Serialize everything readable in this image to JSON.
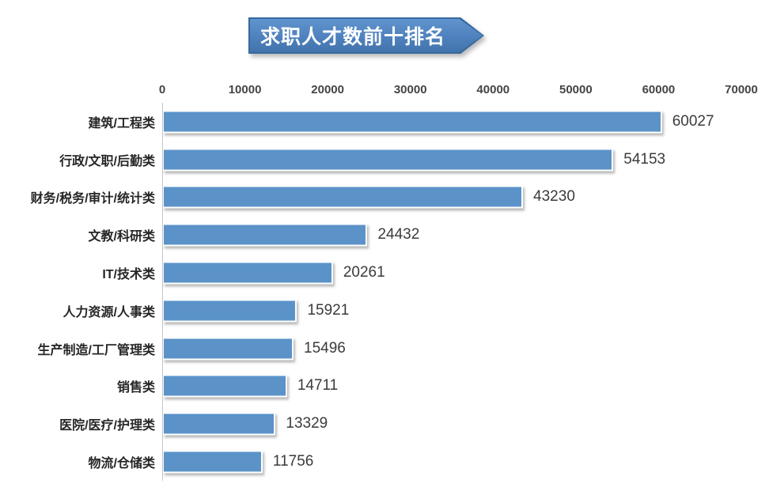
{
  "title": "求职人才数前十排名",
  "chart_data": {
    "type": "bar",
    "orientation": "horizontal",
    "title": "求职人才数前十排名",
    "categories": [
      "建筑/工程类",
      "行政/文职/后勤类",
      "财务/税务/审计/统计类",
      "文教/科研类",
      "IT/技术类",
      "人力资源/人事类",
      "生产制造/工厂管理类",
      "销售类",
      "医院/医疗/护理类",
      "物流/仓储类"
    ],
    "values": [
      60027,
      54153,
      43230,
      24432,
      20261,
      15921,
      15496,
      14711,
      13329,
      11756
    ],
    "data_labels": [
      "60027",
      "54153",
      "43230",
      "24432",
      "20261",
      "15921",
      "15496",
      "14711",
      "13329",
      "11756"
    ],
    "xlim": [
      0,
      70000
    ],
    "x_ticks": [
      "0",
      "10000",
      "20000",
      "30000",
      "40000",
      "50000",
      "60000",
      "70000"
    ],
    "xlabel": "",
    "ylabel": "",
    "grid": false,
    "legend": false
  },
  "colors": {
    "bar_fill": "#5B93C9",
    "banner_fill": "#4E81BD",
    "banner_border": "#38699F",
    "banner_text": "#FFFFFF",
    "axis_line": "#C6C6C6",
    "category_text": "#262626",
    "value_text": "#3B3B3B",
    "tick_text": "#444444"
  }
}
